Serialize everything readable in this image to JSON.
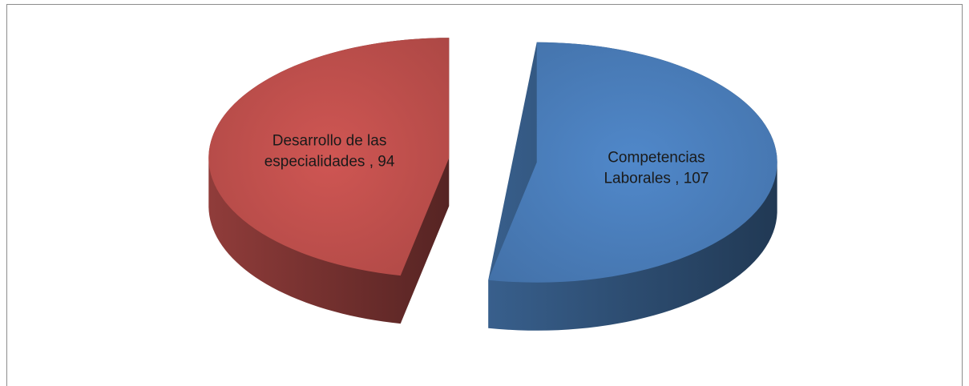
{
  "chart_data": {
    "type": "pie",
    "values": [
      107,
      94
    ],
    "value_labels": [
      "Competencias Laborales , 107",
      "Desarrollo de las especialidades , 94"
    ],
    "colors": [
      "#4a7ebb",
      "#c0504d"
    ]
  }
}
